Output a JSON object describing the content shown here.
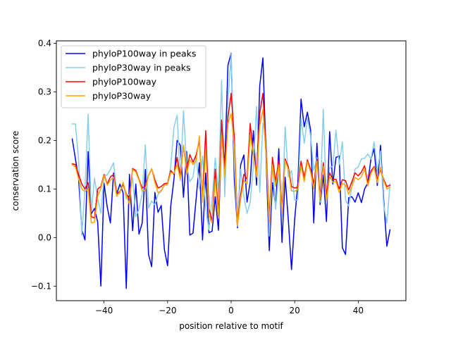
{
  "chart_data": {
    "type": "line",
    "xlabel": "position relative to motif",
    "ylabel": "conservation score",
    "xlim": [
      -55,
      55
    ],
    "ylim": [
      -0.13,
      0.405
    ],
    "xticks": [
      -40,
      -20,
      0,
      20,
      40
    ],
    "yticks": [
      -0.1,
      0.0,
      0.1,
      0.2,
      0.3,
      0.4
    ],
    "xtick_labels": [
      "−40",
      "−20",
      "0",
      "20",
      "40"
    ],
    "ytick_labels": [
      "−0.1",
      "0.0",
      "0.1",
      "0.2",
      "0.3",
      "0.4"
    ],
    "grid": false,
    "legend": "top-left",
    "x_start": -50,
    "series": [
      {
        "name": "phyloP100way in peaks",
        "color": "#0000ff",
        "values": [
          0.203,
          0.162,
          0.121,
          0.016,
          -0.005,
          0.177,
          0.049,
          0.06,
          0.032,
          -0.1,
          0.112,
          0.063,
          0.03,
          0.133,
          0.09,
          0.11,
          0.092,
          -0.105,
          0.13,
          0.014,
          0.11,
          0.007,
          0.03,
          0.14,
          -0.035,
          -0.06,
          0.093,
          0.052,
          0.066,
          -0.025,
          -0.058,
          0.065,
          0.12,
          0.2,
          0.19,
          0.083,
          0.177,
          0.005,
          0.009,
          0.081,
          0.154,
          -0.005,
          0.133,
          0.01,
          0.013,
          0.084,
          0.015,
          0.207,
          0.15,
          0.355,
          0.379,
          0.12,
          0.02,
          0.15,
          0.17,
          0.073,
          0.114,
          0.22,
          0.108,
          0.312,
          0.37,
          0.163,
          -0.027,
          0.113,
          0.065,
          0.183,
          -0.01,
          0.124,
          0.036,
          -0.066,
          0.038,
          0.112,
          0.285,
          0.228,
          0.258,
          0.222,
          0.03,
          0.194,
          0.068,
          0.129,
          0.033,
          0.218,
          0.11,
          0.165,
          0.168,
          -0.021,
          -0.035,
          0.082,
          0.084,
          0.073,
          0.092,
          0.072,
          0.1,
          0.112,
          0.162,
          0.183,
          0.107,
          0.19,
          0.078,
          -0.018,
          0.016
        ]
      },
      {
        "name": "phyloP30way in peaks",
        "color": "#87ceeb",
        "values": [
          0.234,
          0.234,
          0.16,
          0.005,
          0.1,
          0.254,
          0.052,
          0.122,
          0.08,
          0.05,
          0.127,
          0.129,
          0.14,
          0.154,
          0.09,
          0.091,
          0.112,
          0.08,
          0.09,
          0.123,
          0.043,
          0.058,
          0.09,
          0.191,
          0.061,
          0.075,
          0.067,
          0.089,
          0.095,
          0.108,
          0.108,
          0.147,
          0.227,
          0.252,
          0.117,
          0.261,
          0.149,
          0.115,
          0.125,
          0.168,
          0.1,
          0.168,
          0.06,
          0.016,
          0.08,
          0.164,
          0.093,
          0.323,
          0.084,
          0.28,
          0.378,
          0.152,
          0.023,
          0.141,
          0.085,
          0.05,
          0.073,
          0.148,
          0.27,
          0.093,
          0.235,
          0.21,
          0.003,
          0.149,
          0.058,
          0.135,
          0.043,
          0.228,
          0.125,
          0.138,
          0.077,
          0.078,
          0.245,
          0.194,
          0.245,
          0.21,
          0.138,
          0.165,
          0.073,
          0.264,
          0.07,
          0.144,
          0.147,
          0.221,
          0.15,
          0.197,
          0.077,
          0.065,
          0.106,
          0.141,
          0.145,
          0.162,
          0.163,
          0.172,
          0.162,
          0.197,
          0.137,
          0.178,
          0.067,
          0.03,
          0.11
        ]
      },
      {
        "name": "phyloP100way",
        "color": "#ff0000",
        "values": [
          0.152,
          0.15,
          0.13,
          0.11,
          0.1,
          0.113,
          0.043,
          0.04,
          0.1,
          0.105,
          0.13,
          0.11,
          0.125,
          0.13,
          0.09,
          0.095,
          0.11,
          0.09,
          0.08,
          0.142,
          0.138,
          0.12,
          0.102,
          0.106,
          0.128,
          0.141,
          0.119,
          0.102,
          0.105,
          0.111,
          0.112,
          0.138,
          0.13,
          0.165,
          0.125,
          0.19,
          0.14,
          0.171,
          0.155,
          0.17,
          0.2,
          0.078,
          0.22,
          0.06,
          0.034,
          0.141,
          0.05,
          0.242,
          0.14,
          0.248,
          0.297,
          0.205,
          0.03,
          0.088,
          0.13,
          0.12,
          0.235,
          0.17,
          0.133,
          0.256,
          0.297,
          0.18,
          0.04,
          0.165,
          0.115,
          0.16,
          0.06,
          0.162,
          0.145,
          0.105,
          0.102,
          0.104,
          0.157,
          0.123,
          0.16,
          0.141,
          0.11,
          0.161,
          0.086,
          0.154,
          0.088,
          0.133,
          0.12,
          0.12,
          0.1,
          0.119,
          0.117,
          0.098,
          0.115,
          0.133,
          0.127,
          0.135,
          0.148,
          0.112,
          0.137,
          0.146,
          0.12,
          0.14,
          0.12,
          0.105,
          0.108
        ]
      },
      {
        "name": "phyloP30way",
        "color": "#ffa500",
        "values": [
          0.15,
          0.145,
          0.12,
          0.1,
          0.095,
          0.1,
          0.03,
          0.032,
          0.085,
          0.101,
          0.128,
          0.108,
          0.118,
          0.124,
          0.085,
          0.094,
          0.114,
          0.088,
          0.068,
          0.14,
          0.135,
          0.118,
          0.096,
          0.098,
          0.128,
          0.142,
          0.113,
          0.092,
          0.097,
          0.108,
          0.11,
          0.134,
          0.132,
          0.15,
          0.12,
          0.19,
          0.13,
          0.16,
          0.15,
          0.16,
          0.209,
          0.072,
          0.18,
          0.045,
          0.03,
          0.12,
          0.04,
          0.21,
          0.125,
          0.235,
          0.255,
          0.187,
          0.025,
          0.08,
          0.118,
          0.11,
          0.21,
          0.17,
          0.124,
          0.23,
          0.263,
          0.168,
          0.03,
          0.15,
          0.105,
          0.15,
          0.05,
          0.158,
          0.14,
          0.096,
          0.095,
          0.099,
          0.148,
          0.115,
          0.156,
          0.135,
          0.1,
          0.157,
          0.078,
          0.147,
          0.075,
          0.126,
          0.114,
          0.115,
          0.093,
          0.111,
          0.108,
          0.089,
          0.105,
          0.124,
          0.119,
          0.125,
          0.141,
          0.106,
          0.132,
          0.144,
          0.113,
          0.145,
          0.117,
          0.1,
          0.104
        ]
      }
    ]
  }
}
